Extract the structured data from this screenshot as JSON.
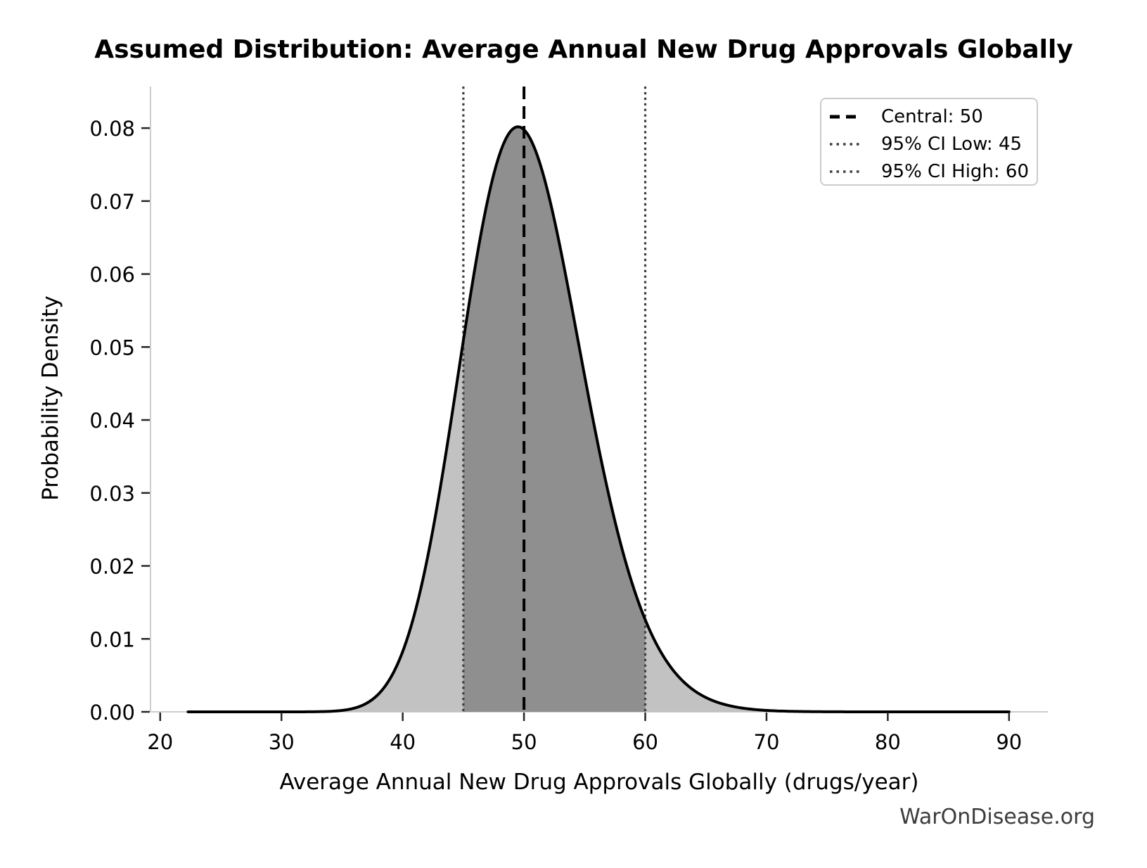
{
  "watermark": "WarOnDisease.org",
  "legend": {
    "position": "upper right",
    "items": [
      {
        "label": "Central: 50",
        "line_style": "dashed",
        "color": "#000000"
      },
      {
        "label": "95% CI Low: 45",
        "line_style": "dotted",
        "color": "#3f3f3f"
      },
      {
        "label": "95% CI High: 60",
        "line_style": "dotted",
        "color": "#3f3f3f"
      }
    ]
  },
  "chart_data": {
    "type": "area",
    "subtype": "probability-density-curve",
    "title": "Assumed Distribution: Average Annual New Drug Approvals Globally",
    "xlabel": "Average Annual New Drug Approvals Globally (drugs/year)",
    "ylabel": "Probability Density",
    "xlim": [
      19.2,
      93.2
    ],
    "ylim": [
      0,
      0.0857
    ],
    "grid": false,
    "x_ticks": [
      20,
      30,
      40,
      50,
      60,
      70,
      80,
      90
    ],
    "x_tick_labels": [
      "20",
      "30",
      "40",
      "50",
      "60",
      "70",
      "80",
      "90"
    ],
    "y_ticks": [
      0,
      0.01,
      0.02,
      0.03,
      0.04,
      0.05,
      0.06,
      0.07,
      0.08
    ],
    "y_tick_labels": [
      "0.00",
      "0.01",
      "0.02",
      "0.03",
      "0.04",
      "0.05",
      "0.06",
      "0.07",
      "0.08"
    ],
    "curve": {
      "distribution": "lognormal",
      "median": 50,
      "sigma": 0.1,
      "x_start": 22.3,
      "x_end": 90,
      "peak_x": 49.5,
      "peak_y": 0.0802,
      "points": [
        [
          22.3,
          0.0
        ],
        [
          25,
          0.0
        ],
        [
          30,
          0.0
        ],
        [
          35,
          0.0002
        ],
        [
          38,
          0.0032
        ],
        [
          40,
          0.0083
        ],
        [
          42,
          0.0208
        ],
        [
          44,
          0.0401
        ],
        [
          45,
          0.0509
        ],
        [
          46,
          0.0613
        ],
        [
          48,
          0.0765
        ],
        [
          49.5,
          0.0802
        ],
        [
          50,
          0.0798
        ],
        [
          52,
          0.071
        ],
        [
          55,
          0.046
        ],
        [
          58,
          0.0229
        ],
        [
          60,
          0.0126
        ],
        [
          62,
          0.0064
        ],
        [
          65,
          0.002
        ],
        [
          70,
          0.0002
        ],
        [
          75,
          0.0
        ],
        [
          80,
          0.0
        ],
        [
          85,
          0.0
        ],
        [
          90,
          0.0
        ]
      ]
    },
    "annotations": {
      "central": {
        "value": 50,
        "label": "Central: 50",
        "style": "dashed",
        "color": "#000000"
      },
      "ci_low": {
        "value": 45,
        "label": "95% CI Low: 45",
        "style": "dotted",
        "color": "#3f3f3f"
      },
      "ci_high": {
        "value": 60,
        "label": "95% CI High: 60",
        "style": "dotted",
        "color": "#3f3f3f"
      }
    },
    "shaded_region": {
      "from": 45,
      "to": 60
    },
    "colors": {
      "fill_light": "#c2c2c2",
      "fill_dark": "#8f8f8f",
      "curve": "#000000",
      "central_line": "#000000",
      "ci_line": "#3f3f3f",
      "spine": "#cccccc",
      "tick": "#262626",
      "tick_label": "#000000",
      "watermark": "#3c3c3c"
    }
  }
}
